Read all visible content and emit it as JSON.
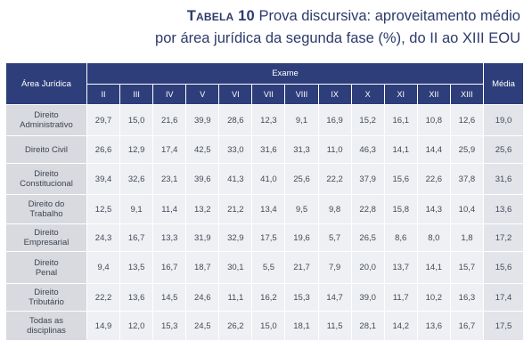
{
  "title": {
    "label": "Tabela 10",
    "line1": "Prova discursiva: aproveitamento médio",
    "line2": "por área jurídica da segunda fase (%), do II ao XIII EOU"
  },
  "table": {
    "area_header": "Área Jurídica",
    "exam_header": "Exame",
    "media_header": "Média",
    "exams": [
      "II",
      "III",
      "IV",
      "V",
      "VI",
      "VII",
      "VIII",
      "IX",
      "X",
      "XI",
      "XII",
      "XIII"
    ],
    "rows": [
      {
        "name_lines": [
          "Direito",
          "Administrativo"
        ],
        "values": [
          "29,7",
          "15,0",
          "21,6",
          "39,9",
          "28,6",
          "12,3",
          "9,1",
          "16,9",
          "15,2",
          "16,1",
          "10,8",
          "12,6"
        ],
        "media": "19,0"
      },
      {
        "name_lines": [
          "Direito Civil"
        ],
        "values": [
          "26,6",
          "12,9",
          "17,4",
          "42,5",
          "33,0",
          "31,6",
          "31,3",
          "11,0",
          "46,3",
          "14,1",
          "14,4",
          "25,9"
        ],
        "media": "25,6"
      },
      {
        "name_lines": [
          "Direito",
          "Constitucional"
        ],
        "values": [
          "39,4",
          "32,6",
          "23,1",
          "39,6",
          "41,3",
          "41,0",
          "25,6",
          "22,2",
          "37,9",
          "15,6",
          "22,6",
          "37,8"
        ],
        "media": "31,6"
      },
      {
        "name_lines": [
          "Direito do",
          "Trabalho"
        ],
        "values": [
          "12,5",
          "9,1",
          "11,4",
          "13,2",
          "21,2",
          "13,4",
          "9,5",
          "9,8",
          "22,8",
          "15,8",
          "14,3",
          "10,4"
        ],
        "media": "13,6"
      },
      {
        "name_lines": [
          "Direito",
          "Empresarial"
        ],
        "values": [
          "24,3",
          "16,7",
          "13,3",
          "31,9",
          "32,9",
          "17,5",
          "19,6",
          "5,7",
          "26,5",
          "8,6",
          "8,0",
          "1,8"
        ],
        "media": "17,2"
      },
      {
        "name_lines": [
          "Direito",
          "Penal"
        ],
        "values": [
          "9,4",
          "13,5",
          "16,7",
          "18,7",
          "30,1",
          "5,5",
          "21,7",
          "7,9",
          "20,0",
          "13,7",
          "14,1",
          "15,7"
        ],
        "media": "15,6"
      },
      {
        "name_lines": [
          "Direito",
          "Tributário"
        ],
        "values": [
          "22,2",
          "13,6",
          "14,5",
          "24,6",
          "11,1",
          "16,2",
          "15,3",
          "14,7",
          "39,0",
          "11,7",
          "10,2",
          "16,3"
        ],
        "media": "17,4"
      },
      {
        "name_lines": [
          "Todas as",
          "disciplinas"
        ],
        "values": [
          "14,9",
          "12,0",
          "15,3",
          "24,5",
          "26,2",
          "15,0",
          "18,1",
          "11,5",
          "28,1",
          "14,2",
          "13,6",
          "16,7"
        ],
        "media": "17,5"
      }
    ]
  }
}
